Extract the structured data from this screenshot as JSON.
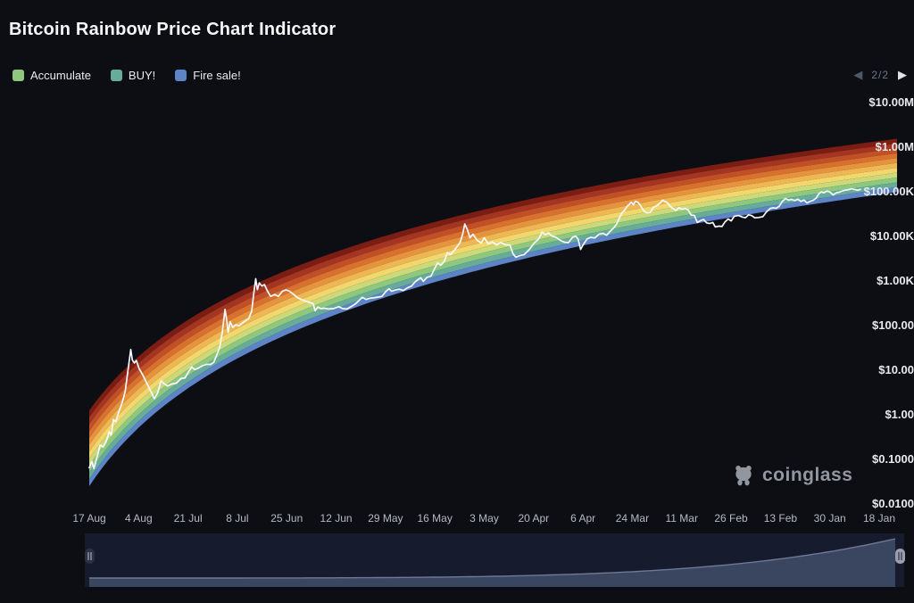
{
  "header": {
    "title": "Bitcoin Rainbow Price Chart Indicator"
  },
  "legend": {
    "items": [
      {
        "label": "Accumulate",
        "color": "#8ec77e"
      },
      {
        "label": "BUY!",
        "color": "#67ab9b"
      },
      {
        "label": "Fire sale!",
        "color": "#5d84c6"
      }
    ],
    "pagination": {
      "label": "2/2",
      "prev_icon": "◀",
      "next_icon": "▶"
    }
  },
  "watermark": {
    "label": "coinglass",
    "icon": "bear-logo-icon"
  },
  "colors": {
    "background": "#0d0e13",
    "title": "#f4f5f7",
    "y_axis_text": "#e8e9ed",
    "x_axis_text": "#b4bac3",
    "price_line": "#f7f9fc",
    "navigator_bg": "#161b2d",
    "navigator_fill": "#3a455f",
    "navigator_line": "#6d7996",
    "handle_left_bg": "#2a3140",
    "handle_left_grip": "#949cab",
    "handle_right_bg": "#999fab",
    "handle_right_grip": "#3c4250"
  },
  "chart_data": {
    "type": "area",
    "title": "Bitcoin Rainbow Price Chart Indicator",
    "legend_position": "top-left",
    "grid": false,
    "y_axis": {
      "scale": "log",
      "ylim": [
        0.01,
        10000000
      ],
      "ticks": [
        {
          "label": "$10.00M",
          "value": 10000000
        },
        {
          "label": "$1.00M",
          "value": 1000000
        },
        {
          "label": "$100.00K",
          "value": 100000
        },
        {
          "label": "$10.00K",
          "value": 10000
        },
        {
          "label": "$1.00K",
          "value": 1000
        },
        {
          "label": "$100.00",
          "value": 100
        },
        {
          "label": "$10.00",
          "value": 10
        },
        {
          "label": "$1.00",
          "value": 1
        },
        {
          "label": "$0.1000",
          "value": 0.1
        },
        {
          "label": "$0.0100",
          "value": 0.01
        }
      ]
    },
    "x_axis": {
      "ticks": [
        "17 Aug",
        "4 Aug",
        "21 Jul",
        "8 Jul",
        "25 Jun",
        "12 Jun",
        "29 May",
        "16 May",
        "3 May",
        "20 Apr",
        "6 Apr",
        "24 Mar",
        "11 Mar",
        "26 Feb",
        "13 Feb",
        "30 Jan",
        "18 Jan"
      ],
      "start_year": 2010.63
    },
    "rainbow_bands": {
      "description": "logarithmic regression rainbow bands, top to bottom",
      "bands": [
        {
          "color": "#7b1d12"
        },
        {
          "color": "#a43522"
        },
        {
          "color": "#c15026"
        },
        {
          "color": "#d8702e"
        },
        {
          "color": "#e6933e"
        },
        {
          "color": "#efb753"
        },
        {
          "color": "#f1d76c"
        },
        {
          "color": "#cbd97a"
        },
        {
          "color": "#8ec77e",
          "label": "Accumulate"
        },
        {
          "color": "#67ab9b",
          "label": "BUY!"
        },
        {
          "color": "#5d84c6",
          "label": "Fire sale!"
        }
      ],
      "regression": {
        "center_slope": 6.095,
        "center_intercept": -17.58,
        "width_at_logd_start": 1.7,
        "width_slope": -0.4845,
        "logd_start": 2.761,
        "days_origin_year": 2009.05
      }
    },
    "price_series": {
      "name": "BTC price (USD)",
      "points": [
        [
          2010.63,
          0.065
        ],
        [
          2010.68,
          0.09
        ],
        [
          2010.72,
          0.062
        ],
        [
          2010.78,
          0.11
        ],
        [
          2010.84,
          0.21
        ],
        [
          2010.9,
          0.19
        ],
        [
          2010.96,
          0.25
        ],
        [
          2011.02,
          0.42
        ],
        [
          2011.06,
          0.35
        ],
        [
          2011.1,
          0.78
        ],
        [
          2011.15,
          0.7
        ],
        [
          2011.2,
          1.1
        ],
        [
          2011.27,
          1.8
        ],
        [
          2011.33,
          3.3
        ],
        [
          2011.38,
          8.9
        ],
        [
          2011.44,
          29
        ],
        [
          2011.47,
          17
        ],
        [
          2011.51,
          14.5
        ],
        [
          2011.55,
          16.5
        ],
        [
          2011.6,
          11
        ],
        [
          2011.68,
          7.6
        ],
        [
          2011.76,
          4.9
        ],
        [
          2011.84,
          3.2
        ],
        [
          2011.9,
          2.3
        ],
        [
          2011.97,
          3.2
        ],
        [
          2012.03,
          5.8
        ],
        [
          2012.09,
          5
        ],
        [
          2012.16,
          4.4
        ],
        [
          2012.24,
          4.9
        ],
        [
          2012.33,
          5.1
        ],
        [
          2012.42,
          6.5
        ],
        [
          2012.5,
          6.7
        ],
        [
          2012.57,
          9.3
        ],
        [
          2012.63,
          11.8
        ],
        [
          2012.69,
          10.3
        ],
        [
          2012.76,
          11.1
        ],
        [
          2012.84,
          12.6
        ],
        [
          2012.92,
          13.5
        ],
        [
          2013,
          13.5
        ],
        [
          2013.06,
          15
        ],
        [
          2013.12,
          22
        ],
        [
          2013.18,
          34
        ],
        [
          2013.23,
          74
        ],
        [
          2013.28,
          230
        ],
        [
          2013.31,
          140
        ],
        [
          2013.34,
          70
        ],
        [
          2013.38,
          122
        ],
        [
          2013.43,
          91
        ],
        [
          2013.49,
          104
        ],
        [
          2013.55,
          98
        ],
        [
          2013.61,
          112
        ],
        [
          2013.68,
          128
        ],
        [
          2013.74,
          142
        ],
        [
          2013.8,
          210
        ],
        [
          2013.84,
          520
        ],
        [
          2013.88,
          1120
        ],
        [
          2013.91,
          640
        ],
        [
          2013.95,
          900
        ],
        [
          2014,
          770
        ],
        [
          2014.05,
          830
        ],
        [
          2014.1,
          620
        ],
        [
          2014.17,
          450
        ],
        [
          2014.25,
          500
        ],
        [
          2014.32,
          450
        ],
        [
          2014.4,
          590
        ],
        [
          2014.47,
          630
        ],
        [
          2014.54,
          590
        ],
        [
          2014.62,
          500
        ],
        [
          2014.7,
          420
        ],
        [
          2014.78,
          380
        ],
        [
          2014.86,
          350
        ],
        [
          2014.93,
          330
        ],
        [
          2015,
          310
        ],
        [
          2015.04,
          215
        ],
        [
          2015.09,
          260
        ],
        [
          2015.15,
          240
        ],
        [
          2015.22,
          245
        ],
        [
          2015.3,
          235
        ],
        [
          2015.4,
          240
        ],
        [
          2015.5,
          265
        ],
        [
          2015.58,
          240
        ],
        [
          2015.66,
          235
        ],
        [
          2015.75,
          270
        ],
        [
          2015.83,
          310
        ],
        [
          2015.9,
          370
        ],
        [
          2015.96,
          430
        ],
        [
          2016.03,
          385
        ],
        [
          2016.1,
          410
        ],
        [
          2016.18,
          420
        ],
        [
          2016.26,
          435
        ],
        [
          2016.34,
          450
        ],
        [
          2016.42,
          580
        ],
        [
          2016.48,
          670
        ],
        [
          2016.53,
          590
        ],
        [
          2016.6,
          625
        ],
        [
          2016.68,
          655
        ],
        [
          2016.76,
          610
        ],
        [
          2016.84,
          700
        ],
        [
          2016.92,
          770
        ],
        [
          2016.99,
          960
        ],
        [
          2017.05,
          1080
        ],
        [
          2017.1,
          1180
        ],
        [
          2017.15,
          980
        ],
        [
          2017.22,
          1200
        ],
        [
          2017.3,
          1290
        ],
        [
          2017.37,
          1900
        ],
        [
          2017.43,
          2550
        ],
        [
          2017.49,
          2250
        ],
        [
          2017.56,
          2750
        ],
        [
          2017.62,
          4300
        ],
        [
          2017.68,
          3900
        ],
        [
          2017.75,
          4800
        ],
        [
          2017.82,
          6100
        ],
        [
          2017.87,
          7400
        ],
        [
          2017.92,
          11200
        ],
        [
          2017.96,
          19000
        ],
        [
          2018.01,
          14200
        ],
        [
          2018.06,
          9300
        ],
        [
          2018.12,
          11200
        ],
        [
          2018.2,
          8200
        ],
        [
          2018.28,
          7100
        ],
        [
          2018.34,
          9300
        ],
        [
          2018.42,
          6800
        ],
        [
          2018.5,
          7500
        ],
        [
          2018.58,
          6400
        ],
        [
          2018.66,
          7300
        ],
        [
          2018.75,
          6500
        ],
        [
          2018.84,
          6400
        ],
        [
          2018.9,
          4100
        ],
        [
          2018.96,
          3400
        ],
        [
          2019.03,
          3700
        ],
        [
          2019.12,
          3900
        ],
        [
          2019.22,
          5100
        ],
        [
          2019.32,
          7200
        ],
        [
          2019.4,
          8700
        ],
        [
          2019.47,
          12600
        ],
        [
          2019.53,
          10800
        ],
        [
          2019.59,
          12000
        ],
        [
          2019.66,
          10200
        ],
        [
          2019.74,
          9500
        ],
        [
          2019.82,
          8200
        ],
        [
          2019.9,
          7400
        ],
        [
          2019.98,
          7200
        ],
        [
          2020.06,
          9400
        ],
        [
          2020.12,
          10200
        ],
        [
          2020.17,
          8800
        ],
        [
          2020.22,
          5100
        ],
        [
          2020.28,
          6800
        ],
        [
          2020.35,
          8800
        ],
        [
          2020.42,
          9500
        ],
        [
          2020.5,
          9200
        ],
        [
          2020.58,
          11200
        ],
        [
          2020.66,
          11700
        ],
        [
          2020.73,
          10600
        ],
        [
          2020.8,
          13100
        ],
        [
          2020.87,
          15700
        ],
        [
          2020.93,
          19400
        ],
        [
          2020.98,
          26500
        ],
        [
          2021.03,
          34000
        ],
        [
          2021.08,
          38500
        ],
        [
          2021.13,
          47500
        ],
        [
          2021.17,
          52000
        ],
        [
          2021.21,
          58500
        ],
        [
          2021.25,
          51000
        ],
        [
          2021.29,
          61500
        ],
        [
          2021.34,
          58000
        ],
        [
          2021.4,
          47000
        ],
        [
          2021.46,
          36500
        ],
        [
          2021.52,
          33500
        ],
        [
          2021.58,
          34500
        ],
        [
          2021.64,
          44500
        ],
        [
          2021.7,
          48500
        ],
        [
          2021.76,
          54500
        ],
        [
          2021.82,
          64500
        ],
        [
          2021.86,
          61000
        ],
        [
          2021.91,
          57500
        ],
        [
          2021.96,
          48500
        ],
        [
          2022.02,
          42500
        ],
        [
          2022.08,
          38000
        ],
        [
          2022.14,
          44000
        ],
        [
          2022.2,
          40500
        ],
        [
          2022.26,
          42500
        ],
        [
          2022.32,
          39000
        ],
        [
          2022.38,
          30000
        ],
        [
          2022.44,
          29500
        ],
        [
          2022.5,
          20500
        ],
        [
          2022.56,
          22500
        ],
        [
          2022.62,
          24000
        ],
        [
          2022.68,
          20000
        ],
        [
          2022.74,
          19500
        ],
        [
          2022.8,
          20500
        ],
        [
          2022.85,
          16300
        ],
        [
          2022.92,
          17000
        ],
        [
          2022.98,
          16700
        ],
        [
          2023.04,
          21200
        ],
        [
          2023.1,
          24600
        ],
        [
          2023.16,
          22300
        ],
        [
          2023.22,
          28300
        ],
        [
          2023.3,
          29400
        ],
        [
          2023.38,
          27000
        ],
        [
          2023.44,
          26300
        ],
        [
          2023.5,
          30500
        ],
        [
          2023.56,
          29300
        ],
        [
          2023.62,
          26100
        ],
        [
          2023.7,
          26500
        ],
        [
          2023.78,
          27800
        ],
        [
          2023.84,
          34600
        ],
        [
          2023.92,
          42200
        ],
        [
          2023.98,
          43800
        ],
        [
          2024.04,
          42600
        ],
        [
          2024.1,
          48000
        ],
        [
          2024.16,
          61500
        ],
        [
          2024.22,
          70800
        ],
        [
          2024.28,
          64800
        ],
        [
          2024.34,
          67200
        ],
        [
          2024.4,
          63500
        ],
        [
          2024.46,
          68500
        ],
        [
          2024.52,
          60500
        ],
        [
          2024.58,
          65200
        ],
        [
          2024.64,
          56300
        ],
        [
          2024.7,
          60800
        ],
        [
          2024.76,
          64500
        ],
        [
          2024.82,
          72500
        ],
        [
          2024.87,
          90500
        ],
        [
          2024.92,
          99000
        ],
        [
          2024.97,
          94500
        ],
        [
          2025.03,
          104000
        ],
        [
          2025.09,
          97500
        ],
        [
          2025.15,
          85000
        ],
        [
          2025.21,
          94500
        ],
        [
          2025.27,
          97800
        ],
        [
          2025.33,
          104500
        ],
        [
          2025.39,
          108500
        ],
        [
          2025.45,
          111000
        ],
        [
          2025.51,
          116800
        ],
        [
          2025.57,
          112300
        ],
        [
          2025.63,
          108000
        ],
        [
          2025.68,
          113500
        ]
      ]
    }
  },
  "navigator": {
    "type": "area",
    "description": "full-range overview scrollbar with drag handles",
    "handles": [
      "left",
      "right"
    ]
  }
}
